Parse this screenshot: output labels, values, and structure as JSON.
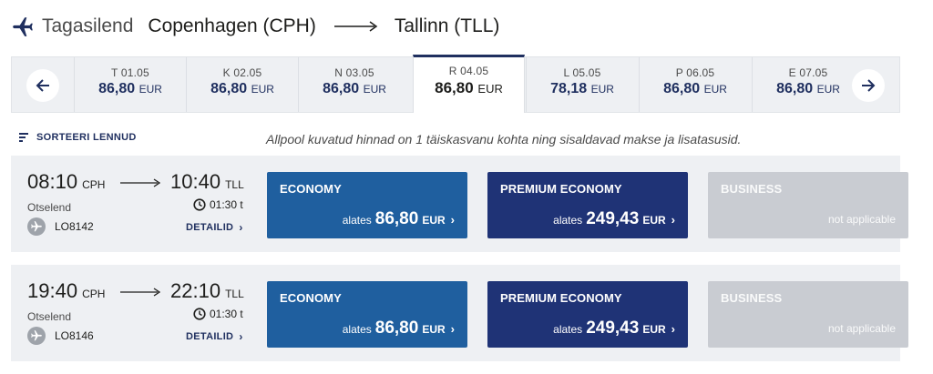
{
  "header": {
    "label": "Tagasilend",
    "origin": "Copenhagen (CPH)",
    "destination": "Tallinn (TLL)"
  },
  "date_strip": {
    "days": [
      {
        "label": "T 01.05",
        "price": "86,80",
        "currency": "EUR",
        "active": false
      },
      {
        "label": "K 02.05",
        "price": "86,80",
        "currency": "EUR",
        "active": false
      },
      {
        "label": "N 03.05",
        "price": "86,80",
        "currency": "EUR",
        "active": false
      },
      {
        "label": "R 04.05",
        "price": "86,80",
        "currency": "EUR",
        "active": true
      },
      {
        "label": "L 05.05",
        "price": "78,18",
        "currency": "EUR",
        "active": false
      },
      {
        "label": "P 06.05",
        "price": "86,80",
        "currency": "EUR",
        "active": false
      },
      {
        "label": "E 07.05",
        "price": "86,80",
        "currency": "EUR",
        "active": false
      }
    ]
  },
  "sort": {
    "label": "SORTEERI LENNUD",
    "note": "Allpool kuvatud hinnad on 1 täiskasvanu kohta ning sisaldavad makse ja lisatasusid."
  },
  "flights": [
    {
      "dep_time": "08:10",
      "dep_airport": "CPH",
      "arr_time": "10:40",
      "arr_airport": "TLL",
      "type": "Otselend",
      "duration": "01:30 t",
      "flight_no": "LO8142",
      "details_label": "DETAILID",
      "fares": {
        "economy": {
          "name": "ECONOMY",
          "prefix": "alates",
          "amount": "86,80",
          "currency": "EUR"
        },
        "premium": {
          "name": "PREMIUM ECONOMY",
          "prefix": "alates",
          "amount": "249,43",
          "currency": "EUR"
        },
        "business": {
          "name": "BUSINESS",
          "status": "not applicable"
        }
      }
    },
    {
      "dep_time": "19:40",
      "dep_airport": "CPH",
      "arr_time": "22:10",
      "arr_airport": "TLL",
      "type": "Otselend",
      "duration": "01:30 t",
      "flight_no": "LO8146",
      "details_label": "DETAILID",
      "fares": {
        "economy": {
          "name": "ECONOMY",
          "prefix": "alates",
          "amount": "86,80",
          "currency": "EUR"
        },
        "premium": {
          "name": "PREMIUM ECONOMY",
          "prefix": "alates",
          "amount": "249,43",
          "currency": "EUR"
        },
        "business": {
          "name": "BUSINESS",
          "status": "not applicable"
        }
      }
    }
  ],
  "colors": {
    "brand_navy": "#1f2f5f",
    "economy": "#1f5f9f",
    "premium": "#1f3376",
    "business_disabled": "#c9ccd2"
  },
  "icons": {
    "header": "plane-icon",
    "prev": "arrow-left-icon",
    "next": "arrow-right-icon",
    "sort": "sort-icon",
    "duration": "clock-icon",
    "airline": "airline-logo-icon"
  }
}
